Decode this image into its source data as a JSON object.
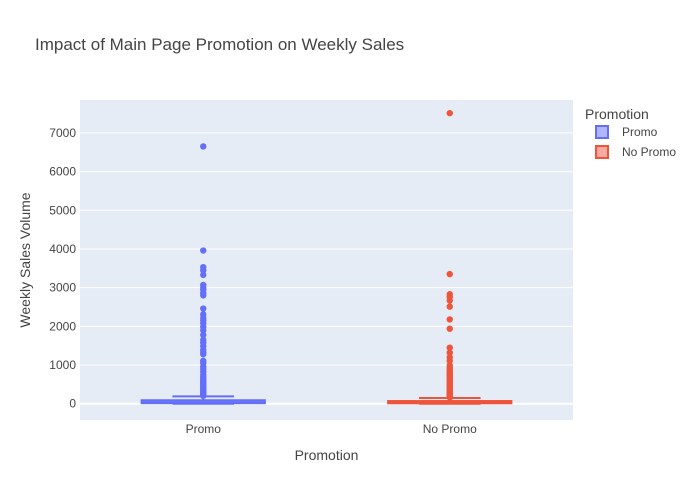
{
  "chart_data": {
    "type": "box",
    "title": "Impact of Main Page Promotion on Weekly Sales",
    "xlabel": "Promotion",
    "ylabel": "Weekly Sales Volume",
    "categories": [
      "Promo",
      "No Promo"
    ],
    "ylim": [
      -420,
      7850
    ],
    "yticks": [
      0,
      1000,
      2000,
      3000,
      4000,
      5000,
      6000,
      7000
    ],
    "grid": true,
    "legend": {
      "title": "Promotion",
      "placement": "top-right",
      "entries": [
        "Promo",
        "No Promo"
      ]
    },
    "series": [
      {
        "name": "Promo",
        "color": "#636efa",
        "box": {
          "min": 0,
          "q1": 15,
          "median": 40,
          "q3": 90,
          "max": 190
        },
        "outliers": [
          6650,
          3960,
          3530,
          3450,
          3330,
          3070,
          3000,
          2940,
          2860,
          2800,
          2460,
          2310,
          2220,
          2150,
          2080,
          1990,
          1900,
          1780,
          1650,
          1580,
          1490,
          1390,
          1330,
          1280,
          1110,
          1050,
          960,
          900,
          830,
          760,
          700,
          650,
          600,
          560,
          520,
          480,
          450,
          420,
          390,
          360,
          330,
          300,
          280,
          260,
          240,
          220,
          205
        ]
      },
      {
        "name": "No Promo",
        "color": "#ef553b",
        "box": {
          "min": 0,
          "q1": 12,
          "median": 30,
          "q3": 70,
          "max": 150
        },
        "outliers": [
          7510,
          3350,
          2830,
          2760,
          2670,
          2510,
          2180,
          1940,
          1450,
          1320,
          1200,
          1110,
          990,
          930,
          880,
          830,
          780,
          740,
          700,
          660,
          620,
          580,
          540,
          500,
          470,
          440,
          410,
          380,
          350,
          320,
          290,
          265,
          240,
          220,
          200,
          180,
          165
        ]
      }
    ]
  }
}
